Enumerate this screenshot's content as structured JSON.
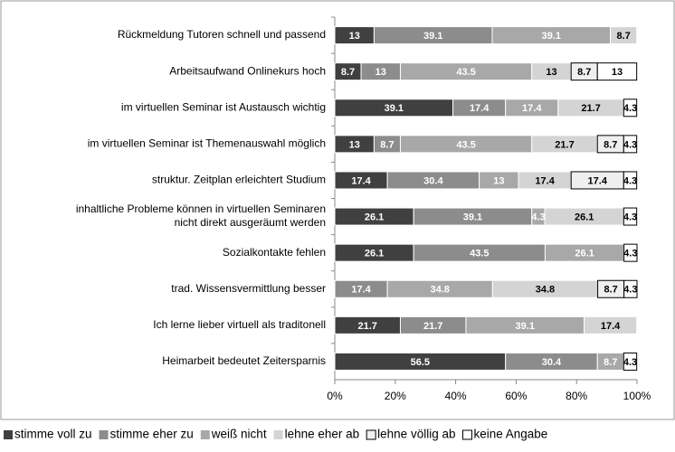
{
  "chart_data": {
    "type": "stacked_barh",
    "categories": [
      "Rückmeldung Tutoren schnell und passend",
      "Arbeitsaufwand Onlinekurs hoch",
      "im virtuellen Seminar ist Austausch wichtig",
      "im virtuellen Seminar ist Themenauswahl möglich",
      "struktur. Zeitplan erleichtert Studium",
      "inhaltliche Probleme können in virtuellen Seminaren\nnicht direkt ausgeräumt werden",
      "Sozialkontakte fehlen",
      "trad. Wissensvermittlung besser",
      "Ich lerne lieber virtuell als traditonell",
      "Heimarbeit bedeutet Zeitersparnis"
    ],
    "series": [
      {
        "name": "stimme voll zu",
        "color": "#404040",
        "values": [
          13,
          8.7,
          39.1,
          13,
          17.4,
          26.1,
          26.1,
          null,
          21.7,
          56.5
        ]
      },
      {
        "name": "stimme eher zu",
        "color": "#8c8c8c",
        "values": [
          39.1,
          13,
          17.4,
          8.7,
          30.4,
          39.1,
          43.5,
          17.4,
          21.7,
          30.4
        ]
      },
      {
        "name": "weiß nicht",
        "color": "#a8a8a8",
        "values": [
          39.1,
          43.5,
          17.4,
          43.5,
          13,
          4.3,
          26.1,
          34.8,
          39.1,
          8.7
        ]
      },
      {
        "name": "lehne eher ab",
        "color": "#d4d4d4",
        "values": [
          8.7,
          13,
          21.7,
          21.7,
          17.4,
          26.1,
          null,
          34.8,
          17.4,
          null
        ]
      },
      {
        "name": "lehne völlig ab",
        "color": "#efefef",
        "values": [
          null,
          8.7,
          null,
          8.7,
          17.4,
          null,
          null,
          8.7,
          null,
          null
        ]
      },
      {
        "name": "keine Angabe",
        "color": "#ffffff",
        "values": [
          null,
          13,
          4.3,
          4.3,
          4.3,
          4.3,
          4.3,
          4.3,
          null,
          4.3
        ]
      }
    ],
    "xlim": [
      0,
      100
    ],
    "xticks": [
      {
        "value": 0,
        "label": "0%"
      },
      {
        "value": 20,
        "label": "20%"
      },
      {
        "value": 40,
        "label": "40%"
      },
      {
        "value": 60,
        "label": "60%"
      },
      {
        "value": 80,
        "label": "80%"
      },
      {
        "value": 100,
        "label": "100%"
      }
    ],
    "legend": "bottom"
  }
}
